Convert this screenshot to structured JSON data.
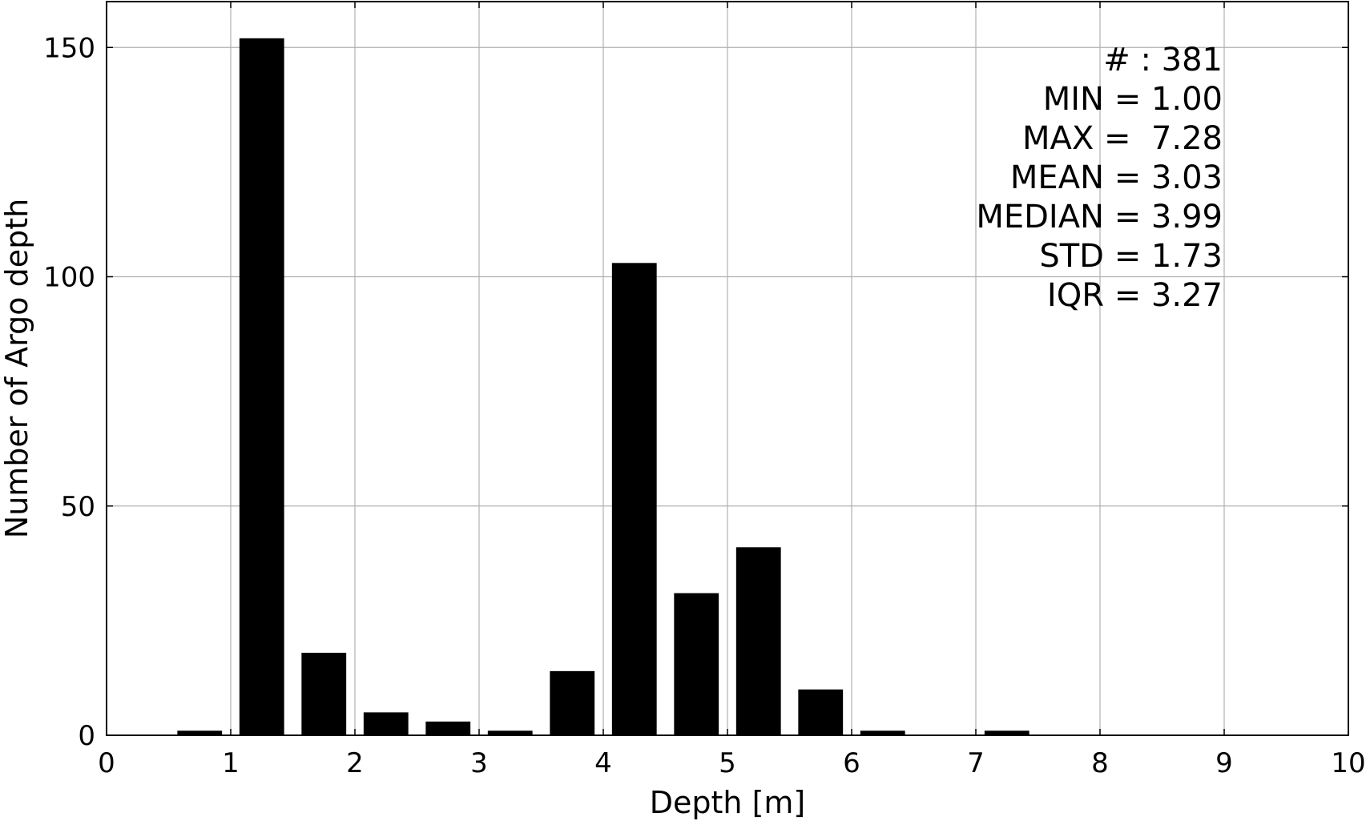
{
  "chart_data": {
    "type": "bar",
    "title": "",
    "xlabel": "Depth [m]",
    "ylabel": "Number of Argo depth",
    "xlim": [
      0,
      10
    ],
    "ylim": [
      0,
      160
    ],
    "x_ticks": [
      0,
      1,
      2,
      3,
      4,
      5,
      6,
      7,
      8,
      9,
      10
    ],
    "y_ticks": [
      0,
      50,
      100,
      150
    ],
    "grid": true,
    "bar_color": "#000000",
    "grid_color": "#b0b0b0",
    "bars": [
      {
        "start": 0.5,
        "end": 1.0,
        "value": 1
      },
      {
        "start": 1.0,
        "end": 1.5,
        "value": 152
      },
      {
        "start": 1.5,
        "end": 2.0,
        "value": 18
      },
      {
        "start": 2.0,
        "end": 2.5,
        "value": 5
      },
      {
        "start": 2.5,
        "end": 3.0,
        "value": 3
      },
      {
        "start": 3.0,
        "end": 3.5,
        "value": 1
      },
      {
        "start": 3.5,
        "end": 4.0,
        "value": 14
      },
      {
        "start": 4.0,
        "end": 4.5,
        "value": 103
      },
      {
        "start": 4.5,
        "end": 5.0,
        "value": 31
      },
      {
        "start": 5.0,
        "end": 5.5,
        "value": 41
      },
      {
        "start": 5.5,
        "end": 6.0,
        "value": 10
      },
      {
        "start": 6.0,
        "end": 6.5,
        "value": 1
      },
      {
        "start": 6.5,
        "end": 7.0,
        "value": 0
      },
      {
        "start": 7.0,
        "end": 7.5,
        "value": 1
      }
    ],
    "annotations": [
      "# : 381",
      "MIN = 1.00",
      "MAX =  7.28",
      "MEAN = 3.03",
      "MEDIAN = 3.99",
      "STD = 1.73",
      "IQR = 3.27"
    ]
  }
}
